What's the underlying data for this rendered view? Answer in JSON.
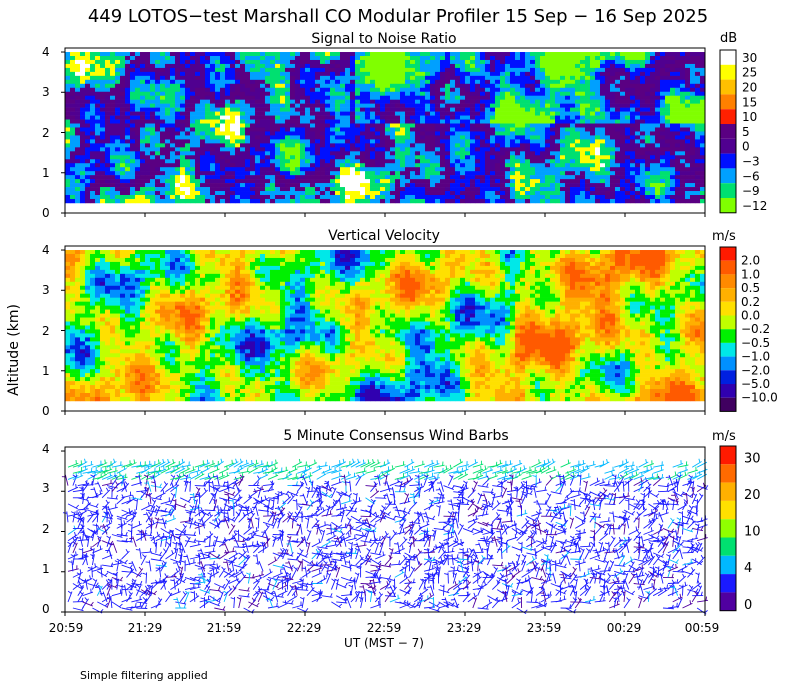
{
  "figure": {
    "title": "449 LOTOS−test Marshall CO Modular Profiler 15 Sep − 16 Sep 2025",
    "ylabel": "Altitude (km)",
    "xlabel": "UT  (MST − 7)",
    "footnote": "Simple filtering applied",
    "time_ticks": [
      "20:59",
      "21:29",
      "21:59",
      "22:29",
      "22:59",
      "23:29",
      "23:59",
      "00:29",
      "00:59"
    ]
  },
  "chart_data": [
    {
      "type": "heatmap",
      "title": "Signal to Noise Ratio",
      "yticks": [
        "0",
        "1",
        "2",
        "3",
        "4"
      ],
      "ylim": [
        0,
        4.1
      ],
      "data_range_km": [
        0.25,
        4.0
      ],
      "colorbar": {
        "unit": "dB",
        "labels": [
          "30",
          "25",
          "20",
          "15",
          "10",
          "5",
          "0",
          "−3",
          "−6",
          "−9",
          "−12"
        ],
        "colors": [
          "#ffffff",
          "#ffff00",
          "#ffc000",
          "#ff8000",
          "#ff2000",
          "#5a0082",
          "#500090",
          "#0010ff",
          "#00a0ff",
          "#00e070",
          "#80ff00"
        ]
      }
    },
    {
      "type": "heatmap",
      "title": "Vertical Velocity",
      "yticks": [
        "0",
        "1",
        "2",
        "3",
        "4"
      ],
      "ylim": [
        0,
        4.1
      ],
      "data_range_km": [
        0.25,
        4.0
      ],
      "colorbar": {
        "unit": "m/s",
        "labels": [
          "2.0",
          "1.0",
          "0.5",
          "0.2",
          "0.0",
          "−0.2",
          "−0.5",
          "−1.0",
          "−2.0",
          "−5.0",
          "−10.0"
        ],
        "colors": [
          "#ff1a00",
          "#ff5a00",
          "#ff8a00",
          "#ffb000",
          "#ffe000",
          "#c0ff00",
          "#00f000",
          "#00e8e8",
          "#0090ff",
          "#0020e0",
          "#3000b0",
          "#400060"
        ]
      }
    },
    {
      "type": "scatter",
      "title": "5 Minute Consensus Wind Barbs",
      "yticks": [
        "0",
        "1",
        "2",
        "3",
        "4"
      ],
      "ylim": [
        0,
        4.1
      ],
      "colorbar": {
        "unit": "m/s",
        "labels": [
          "30",
          "20",
          "10",
          "4",
          "0"
        ],
        "colors": [
          "#ff1a00",
          "#ff6a00",
          "#ffb000",
          "#ffe000",
          "#90ff00",
          "#00e070",
          "#00b8ff",
          "#1a1aff",
          "#5000a0"
        ]
      }
    }
  ]
}
